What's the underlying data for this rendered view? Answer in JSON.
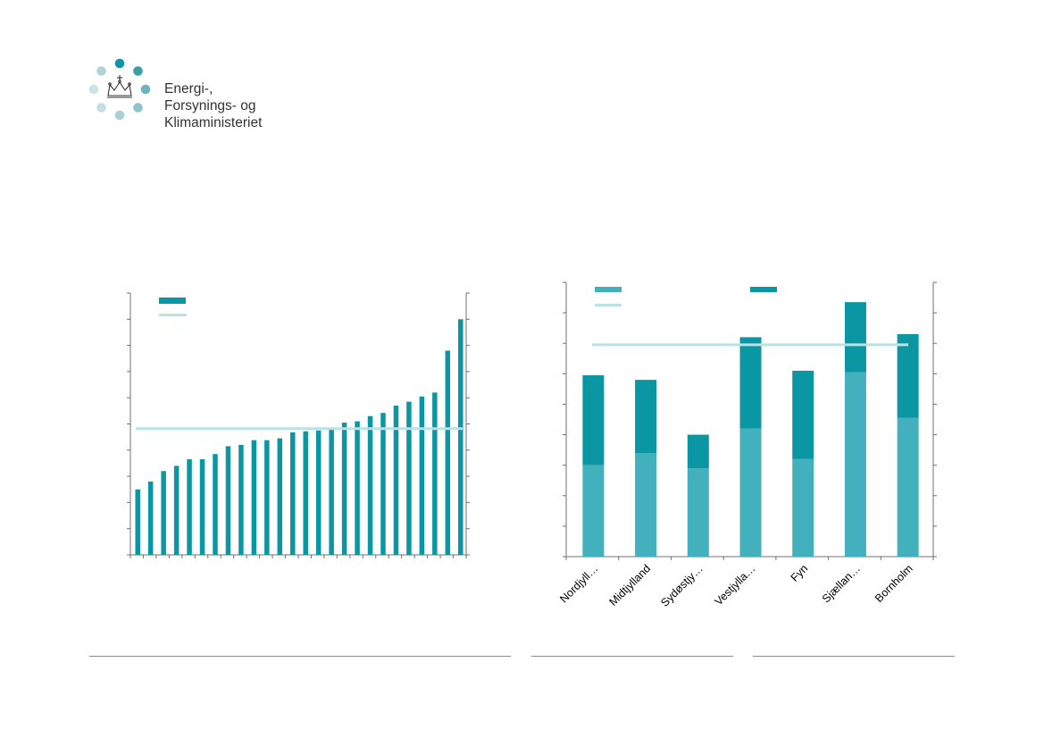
{
  "logo": {
    "line1": "Energi-,",
    "line2": "Forsynings- og",
    "line3": "Klimaministeriet"
  },
  "colors": {
    "bar_dark": "#0a96a2",
    "bar_light": "#43b0bd",
    "avg_line": "#b8e2e6",
    "axis": "#707070",
    "rule": "#8c8c8c",
    "logo_dots": [
      "#0a96a2",
      "#3b9ea8",
      "#6db5bd",
      "#8ec5cc",
      "#a8d0d6",
      "#c3dde2",
      "#cfe3e7",
      "#b3d2d8"
    ]
  },
  "chart_data": [
    {
      "type": "bar",
      "title": "",
      "legend": {
        "placement": "top-left",
        "entries": [
          "",
          ""
        ]
      },
      "ylim": [
        0,
        10
      ],
      "gridlines": false,
      "values": [
        2.5,
        2.8,
        3.2,
        3.4,
        3.65,
        3.65,
        3.85,
        4.15,
        4.2,
        4.38,
        4.38,
        4.45,
        4.68,
        4.72,
        4.75,
        4.78,
        5.05,
        5.1,
        5.3,
        5.42,
        5.7,
        5.85,
        6.05,
        6.2,
        7.8,
        9.0
      ],
      "reference_line": 4.82
    },
    {
      "type": "bar",
      "stacked": true,
      "title": "",
      "legend": {
        "placement": "top-left",
        "entries": [
          "",
          "",
          ""
        ]
      },
      "ylim": [
        0,
        9
      ],
      "gridlines": false,
      "categories": [
        "Nordjyll…",
        "Midtjylland",
        "Sydøstjy…",
        "Vestjylla…",
        "Fyn",
        "Sjællan…",
        "Bornholm"
      ],
      "series": [
        {
          "values": [
            3.0,
            3.4,
            2.9,
            4.2,
            3.2,
            6.05,
            4.55
          ]
        },
        {
          "values": [
            2.95,
            2.4,
            1.1,
            3.0,
            2.9,
            2.3,
            2.75
          ]
        }
      ],
      "reference_line": 6.95
    }
  ]
}
